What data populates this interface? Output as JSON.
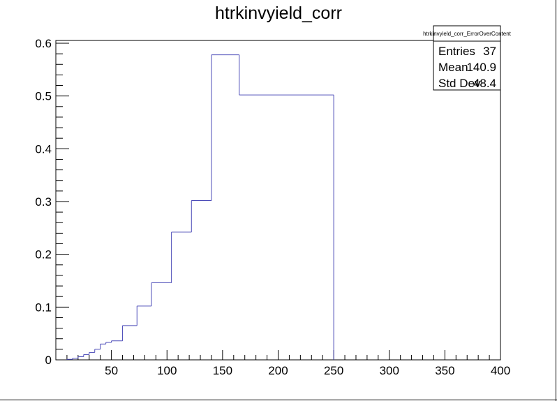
{
  "chart_data": {
    "type": "bar",
    "style": "step-histogram",
    "title": "htrkinvyield_corr",
    "xlabel": "",
    "ylabel": "",
    "xlim": [
      0,
      400
    ],
    "ylim": [
      0,
      0.6
    ],
    "bins": [
      {
        "low": 10,
        "high": 15,
        "value": 0.001
      },
      {
        "low": 15,
        "high": 20,
        "value": 0.003
      },
      {
        "low": 20,
        "high": 25,
        "value": 0.006
      },
      {
        "low": 25,
        "high": 30,
        "value": 0.01
      },
      {
        "low": 30,
        "high": 35,
        "value": 0.014
      },
      {
        "low": 35,
        "high": 40,
        "value": 0.02
      },
      {
        "low": 40,
        "high": 45,
        "value": 0.03
      },
      {
        "low": 45,
        "high": 50,
        "value": 0.033
      },
      {
        "low": 50,
        "high": 60,
        "value": 0.036
      },
      {
        "low": 60,
        "high": 73,
        "value": 0.065
      },
      {
        "low": 73,
        "high": 86,
        "value": 0.102
      },
      {
        "low": 86,
        "high": 104,
        "value": 0.146
      },
      {
        "low": 104,
        "high": 122,
        "value": 0.242
      },
      {
        "low": 122,
        "high": 140,
        "value": 0.302
      },
      {
        "low": 140,
        "high": 165,
        "value": 0.578
      },
      {
        "low": 165,
        "high": 250,
        "value": 0.502
      }
    ],
    "x_ticks": [
      50,
      100,
      150,
      200,
      250,
      300,
      350,
      400
    ],
    "x_tick_labels": [
      "50",
      "100",
      "150",
      "200",
      "250",
      "300",
      "350",
      "400"
    ],
    "y_ticks": [
      0,
      0.1,
      0.2,
      0.3,
      0.4,
      0.5,
      0.6
    ],
    "y_tick_labels": [
      "0",
      "0.1",
      "0.2",
      "0.3",
      "0.4",
      "0.5",
      "0.6"
    ],
    "line_color": "#4b4bb8",
    "grid": false,
    "legend": "none"
  },
  "stats_box": {
    "name": "htrkinvyield_corr_ErrorOverContent",
    "rows": [
      {
        "label": "Entries",
        "value": "37"
      },
      {
        "label": "Mean",
        "value": "140.9"
      },
      {
        "label": "Std Dev",
        "value": "48.4"
      }
    ]
  }
}
